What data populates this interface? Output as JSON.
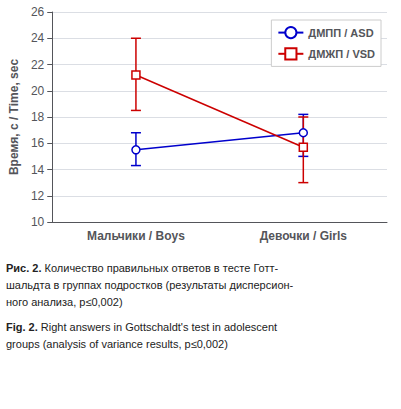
{
  "chart_data": {
    "type": "line",
    "categories": [
      "Мальчики / Boys",
      "Девочки / Girls"
    ],
    "series": [
      {
        "name": "ДМПП / ASD",
        "color": "#0000cc",
        "marker": "circle",
        "values": [
          15.5,
          16.8
        ],
        "error_low": [
          1.2,
          1.8
        ],
        "error_high": [
          1.3,
          1.4
        ]
      },
      {
        "name": "ДМЖП / VSD",
        "color": "#cc0000",
        "marker": "square",
        "values": [
          21.2,
          15.7
        ],
        "error_low": [
          2.7,
          2.7
        ],
        "error_high": [
          2.8,
          2.3
        ]
      }
    ],
    "ylabel": "Время, с / Time, sec",
    "ylim": [
      10,
      26
    ],
    "yticks": [
      10,
      12,
      14,
      16,
      18,
      20,
      22,
      24,
      26
    ],
    "grid": true,
    "legend": "upper right",
    "annotations": [
      "Рис. 2. Количество правильных ответов в тесте Готт-",
      "шальдта в группах подростков (результаты дисперсион-",
      "ного анализа, p≤0,002)",
      "Fig. 2. Right answers in Gottschaldt's test in adolescent",
      "groups (analysis of variance results, p≤0,002)"
    ]
  }
}
